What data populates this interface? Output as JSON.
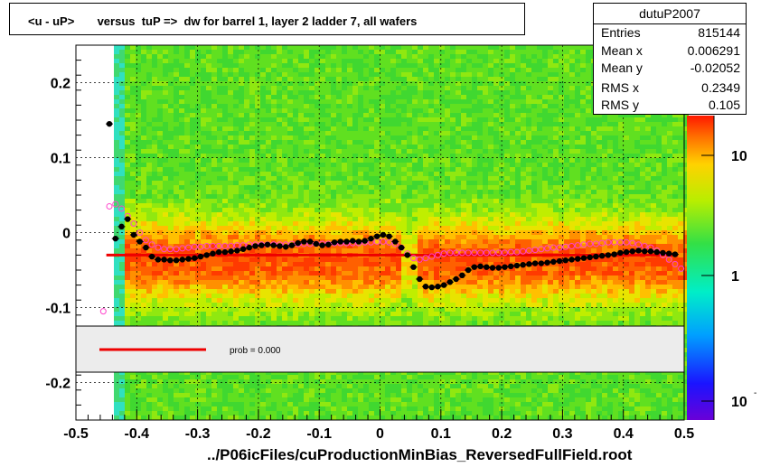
{
  "title": "<u - uP>       versus  tuP =>  dw for barrel 1, layer 2 ladder 7, all wafers",
  "stats": {
    "name": "dutuP2007",
    "rows": [
      {
        "key": "Entries",
        "value": "815144"
      },
      {
        "key": "Mean x",
        "value": "0.006291"
      },
      {
        "key": "Mean y",
        "value": "-0.02052"
      },
      {
        "key": "RMS x",
        "value": "0.2349"
      },
      {
        "key": "RMS y",
        "value": "0.105"
      }
    ]
  },
  "legend": {
    "label": "prob = 0.000"
  },
  "colorbar": {
    "labels": [
      "10",
      "1",
      "10"
    ],
    "scale": "log"
  },
  "xfile_label": "../P06icFiles/cuProductionMinBias_ReversedFullField.root",
  "colors": {
    "fit_line": "#ee0000",
    "profile_black": "#000000",
    "profile_magenta": "#ff44cc"
  },
  "chart_data": {
    "type": "heatmap",
    "title": "<u - uP>       versus  tuP =>  dw for barrel 1, layer 2 ladder 7, all wafers",
    "xlim": [
      -0.5,
      0.5
    ],
    "ylim": [
      -0.25,
      0.25
    ],
    "x_ticks": [
      "-0.5",
      "-0.4",
      "-0.3",
      "-0.2",
      "-0.1",
      "0",
      "0.1",
      "0.2",
      "0.3",
      "0.4",
      "0.5"
    ],
    "y_ticks": [
      "0.2",
      "0.1",
      "0",
      "-0.1",
      "-0.2"
    ],
    "grid": true,
    "fit_line": {
      "x": [
        -0.45,
        0.49
      ],
      "y": [
        -0.03,
        -0.03
      ]
    },
    "profile_black": {
      "x": [
        -0.445,
        -0.435,
        -0.425,
        -0.415,
        -0.405,
        -0.395,
        -0.385,
        -0.375,
        -0.365,
        -0.355,
        -0.345,
        -0.335,
        -0.325,
        -0.315,
        -0.305,
        -0.295,
        -0.285,
        -0.275,
        -0.265,
        -0.255,
        -0.245,
        -0.235,
        -0.225,
        -0.215,
        -0.205,
        -0.195,
        -0.185,
        -0.175,
        -0.165,
        -0.155,
        -0.145,
        -0.135,
        -0.125,
        -0.115,
        -0.105,
        -0.095,
        -0.085,
        -0.075,
        -0.065,
        -0.055,
        -0.045,
        -0.035,
        -0.025,
        -0.015,
        -0.005,
        0.005,
        0.015,
        0.025,
        0.035,
        0.045,
        0.055,
        0.065,
        0.075,
        0.085,
        0.095,
        0.105,
        0.115,
        0.125,
        0.135,
        0.145,
        0.155,
        0.165,
        0.175,
        0.185,
        0.195,
        0.205,
        0.215,
        0.225,
        0.235,
        0.245,
        0.255,
        0.265,
        0.275,
        0.285,
        0.295,
        0.305,
        0.315,
        0.325,
        0.335,
        0.345,
        0.355,
        0.365,
        0.375,
        0.385,
        0.395,
        0.405,
        0.415,
        0.425,
        0.435,
        0.445,
        0.455,
        0.465,
        0.475,
        0.485
      ],
      "y": [
        0.145,
        -0.008,
        0.008,
        0.018,
        -0.003,
        -0.012,
        -0.02,
        -0.032,
        -0.036,
        -0.036,
        -0.037,
        -0.037,
        -0.036,
        -0.035,
        -0.034,
        -0.032,
        -0.03,
        -0.028,
        -0.026,
        -0.026,
        -0.025,
        -0.024,
        -0.022,
        -0.02,
        -0.018,
        -0.017,
        -0.016,
        -0.017,
        -0.018,
        -0.019,
        -0.017,
        -0.014,
        -0.012,
        -0.012,
        -0.015,
        -0.017,
        -0.016,
        -0.013,
        -0.012,
        -0.012,
        -0.011,
        -0.012,
        -0.011,
        -0.008,
        -0.005,
        -0.003,
        -0.005,
        -0.012,
        -0.02,
        -0.03,
        -0.046,
        -0.062,
        -0.072,
        -0.073,
        -0.072,
        -0.07,
        -0.066,
        -0.062,
        -0.057,
        -0.05,
        -0.046,
        -0.045,
        -0.046,
        -0.047,
        -0.047,
        -0.046,
        -0.045,
        -0.044,
        -0.043,
        -0.042,
        -0.041,
        -0.041,
        -0.04,
        -0.039,
        -0.038,
        -0.037,
        -0.036,
        -0.035,
        -0.034,
        -0.033,
        -0.032,
        -0.031,
        -0.03,
        -0.029,
        -0.027,
        -0.026,
        -0.025,
        -0.024,
        -0.025,
        -0.025,
        -0.026,
        -0.027,
        -0.028,
        -0.029
      ]
    },
    "profile_magenta": {
      "x": [
        -0.455,
        -0.445,
        -0.435,
        -0.425,
        -0.415,
        -0.405,
        -0.395,
        -0.385,
        -0.375,
        -0.365,
        -0.355,
        -0.345,
        -0.335,
        -0.325,
        -0.315,
        -0.305,
        -0.295,
        -0.285,
        -0.275,
        -0.265,
        -0.255,
        -0.245,
        -0.235,
        -0.225,
        -0.215,
        -0.205,
        -0.195,
        -0.185,
        -0.175,
        -0.165,
        -0.155,
        -0.145,
        -0.135,
        -0.125,
        -0.115,
        -0.105,
        -0.095,
        -0.085,
        -0.075,
        -0.065,
        -0.055,
        -0.045,
        -0.035,
        -0.025,
        -0.015,
        -0.005,
        0.005,
        0.015,
        0.025,
        0.035,
        0.045,
        0.055,
        0.065,
        0.075,
        0.085,
        0.095,
        0.105,
        0.115,
        0.125,
        0.135,
        0.145,
        0.155,
        0.165,
        0.175,
        0.185,
        0.195,
        0.205,
        0.215,
        0.225,
        0.235,
        0.245,
        0.255,
        0.265,
        0.275,
        0.285,
        0.295,
        0.305,
        0.315,
        0.325,
        0.335,
        0.345,
        0.355,
        0.365,
        0.375,
        0.385,
        0.395,
        0.405,
        0.415,
        0.425,
        0.435,
        0.445,
        0.455,
        0.465,
        0.475,
        0.485,
        0.495
      ],
      "y": [
        -0.105,
        0.035,
        0.038,
        0.032,
        0.022,
        0.012,
        0.0,
        -0.01,
        -0.016,
        -0.02,
        -0.022,
        -0.022,
        -0.022,
        -0.021,
        -0.02,
        -0.019,
        -0.019,
        -0.018,
        -0.018,
        -0.018,
        -0.018,
        -0.018,
        -0.017,
        -0.017,
        -0.016,
        -0.016,
        -0.016,
        -0.016,
        -0.016,
        -0.016,
        -0.016,
        -0.015,
        -0.015,
        -0.015,
        -0.015,
        -0.015,
        -0.015,
        -0.015,
        -0.014,
        -0.014,
        -0.014,
        -0.014,
        -0.014,
        -0.013,
        -0.013,
        -0.012,
        -0.012,
        -0.013,
        -0.015,
        -0.02,
        -0.028,
        -0.034,
        -0.036,
        -0.034,
        -0.032,
        -0.03,
        -0.028,
        -0.027,
        -0.027,
        -0.027,
        -0.027,
        -0.027,
        -0.027,
        -0.027,
        -0.027,
        -0.027,
        -0.027,
        -0.026,
        -0.026,
        -0.025,
        -0.024,
        -0.023,
        -0.022,
        -0.021,
        -0.02,
        -0.02,
        -0.019,
        -0.018,
        -0.017,
        -0.016,
        -0.015,
        -0.015,
        -0.014,
        -0.013,
        -0.013,
        -0.013,
        -0.013,
        -0.014,
        -0.016,
        -0.018,
        -0.02,
        -0.024,
        -0.03,
        -0.036,
        -0.042,
        -0.048
      ]
    }
  }
}
